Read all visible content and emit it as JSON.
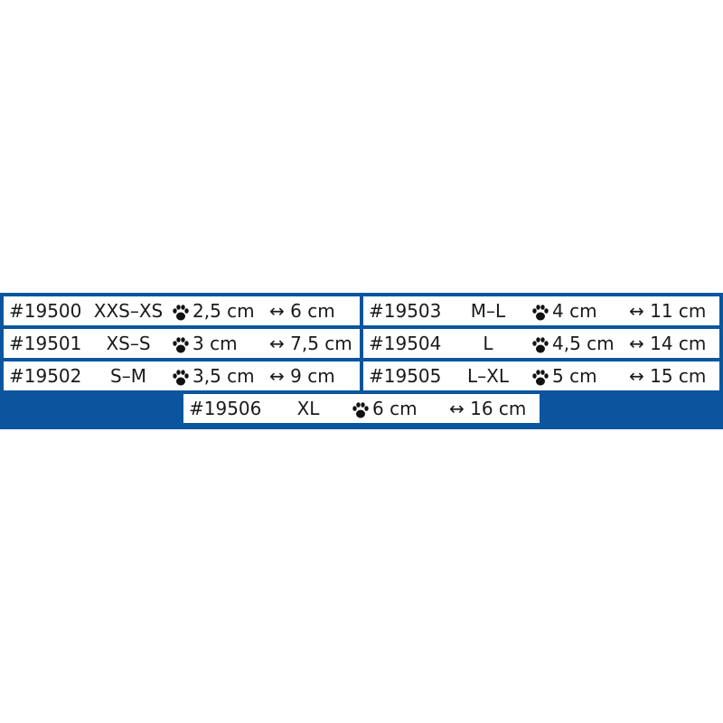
{
  "accent_color": "#0b559f",
  "icons": {
    "paw": "paw-icon",
    "width": "double-arrow-icon"
  },
  "arrow_glyph": "↔",
  "rows": [
    {
      "sku": "#19500",
      "size": "XXS–XS",
      "paw": "2,5 cm",
      "width": "6 cm"
    },
    {
      "sku": "#19501",
      "size": "XS–S",
      "paw": "3 cm",
      "width": "7,5 cm"
    },
    {
      "sku": "#19502",
      "size": "S–M",
      "paw": "3,5 cm",
      "width": "9 cm"
    },
    {
      "sku": "#19503",
      "size": "M–L",
      "paw": "4 cm",
      "width": "11 cm"
    },
    {
      "sku": "#19504",
      "size": "L",
      "paw": "4,5 cm",
      "width": "14 cm"
    },
    {
      "sku": "#19505",
      "size": "L–XL",
      "paw": "5 cm",
      "width": "15 cm"
    },
    {
      "sku": "#19506",
      "size": "XL",
      "paw": "6 cm",
      "width": "16 cm"
    }
  ]
}
